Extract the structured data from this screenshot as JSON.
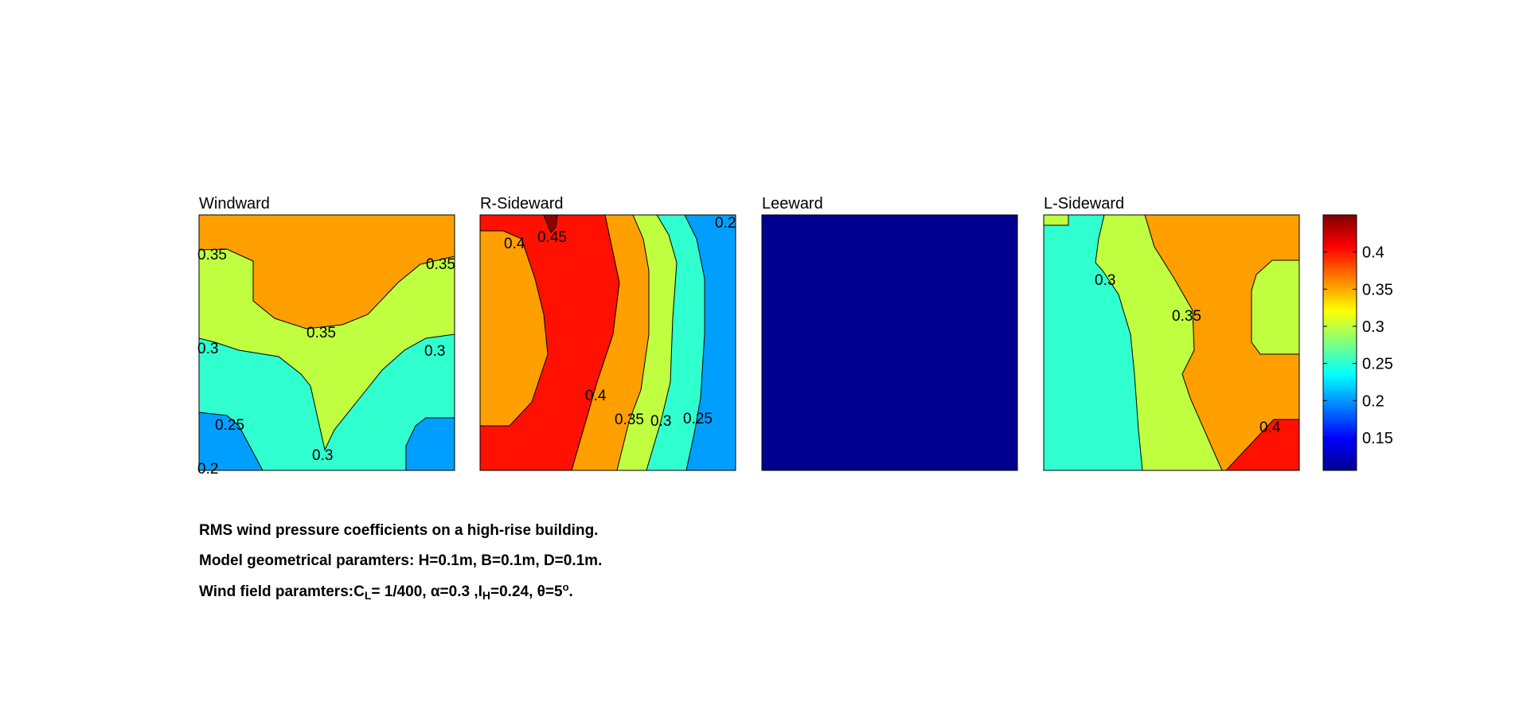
{
  "chart_data": {
    "type": "contour",
    "colormap": "jet",
    "colorbar": {
      "range": [
        0.106,
        0.45
      ],
      "ticks": [
        "0.15",
        "0.2",
        "0.25",
        "0.3",
        "0.35",
        "0.4"
      ],
      "tick_values": [
        0.15,
        0.2,
        0.25,
        0.3,
        0.35,
        0.4
      ],
      "placement": "right"
    },
    "levels": [
      0.2,
      0.25,
      0.3,
      0.35,
      0.4,
      0.45
    ],
    "panels": [
      {
        "title": "Windward",
        "regions": [
          {
            "level": 0.35,
            "color": "#ff9f00"
          },
          {
            "level": 0.3,
            "color": "#bfff3f"
          },
          {
            "level": 0.25,
            "color": "#30ffcf"
          },
          {
            "level": 0.2,
            "color": "#009fff"
          }
        ],
        "contour_labels": [
          "0.35",
          "0.35",
          "0.35",
          "0.3",
          "0.3",
          "0.25",
          "0.3",
          "0.2"
        ]
      },
      {
        "title": "R-Sideward",
        "regions": [
          {
            "level": 0.35,
            "color": "#ff9f00"
          },
          {
            "level": 0.4,
            "color": "#ff1000"
          },
          {
            "level": 0.45,
            "color": "#8f0000"
          },
          {
            "level": 0.3,
            "color": "#bfff3f"
          },
          {
            "level": 0.25,
            "color": "#30ffcf"
          },
          {
            "level": 0.2,
            "color": "#009fff"
          }
        ],
        "contour_labels": [
          "0.4",
          "0.45",
          "0.2",
          "0.4",
          "0.35",
          "0.3",
          "0.25"
        ]
      },
      {
        "title": "Leeward",
        "regions": [
          {
            "level": 0.106,
            "color": "#00008f"
          }
        ],
        "contour_labels": []
      },
      {
        "title": "L-Sideward",
        "regions": [
          {
            "level": 0.25,
            "color": "#30ffcf"
          },
          {
            "level": 0.3,
            "color": "#bfff3f"
          },
          {
            "level": 0.35,
            "color": "#ff9f00"
          },
          {
            "level": 0.4,
            "color": "#ff1000"
          }
        ],
        "contour_labels": [
          "0.3",
          "0.35",
          "0.4"
        ]
      }
    ]
  },
  "caption": {
    "line1": "RMS wind pressure coefficients on a high-rise building.",
    "line2": "Model geometrical paramters: H=0.1m, B=0.1m, D=0.1m.",
    "line3_prefix": "Wind field paramters:C",
    "line3_sub1": "L",
    "line3_mid": "= 1/400, α=0.3 ,I",
    "line3_sub2": "H",
    "line3_end": "=0.24, θ=5",
    "line3_sup": "o",
    "line3_tail": "."
  }
}
